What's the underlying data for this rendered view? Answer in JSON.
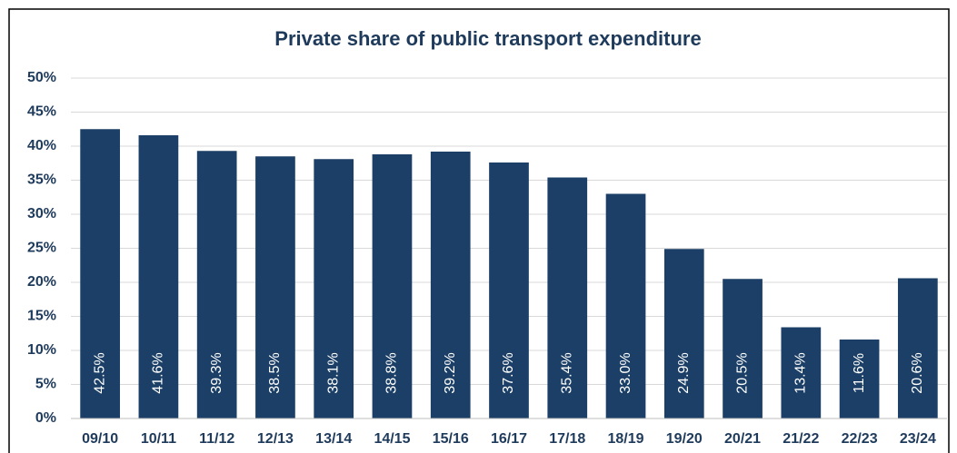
{
  "chart_data": {
    "type": "bar",
    "title": "Private share of public transport expenditure",
    "categories": [
      "09/10",
      "10/11",
      "11/12",
      "12/13",
      "13/14",
      "14/15",
      "15/16",
      "16/17",
      "17/18",
      "18/19",
      "19/20",
      "20/21",
      "21/22",
      "22/23",
      "23/24"
    ],
    "values": [
      42.5,
      41.6,
      39.3,
      38.5,
      38.1,
      38.8,
      39.2,
      37.6,
      35.4,
      33.0,
      24.9,
      20.5,
      13.4,
      11.6,
      20.6
    ],
    "value_labels": [
      "42.5%",
      "41.6%",
      "39.3%",
      "38.5%",
      "38.1%",
      "38.8%",
      "39.2%",
      "37.6%",
      "35.4%",
      "33.0%",
      "24.9%",
      "20.5%",
      "13.4%",
      "11.6%",
      "20.6%"
    ],
    "color": "#1b3f66",
    "ylim": [
      0,
      50
    ],
    "yticks": [
      {
        "value": 0,
        "label": "0%"
      },
      {
        "value": 5,
        "label": "5%"
      },
      {
        "value": 10,
        "label": "10%"
      },
      {
        "value": 15,
        "label": "15%"
      },
      {
        "value": 20,
        "label": "20%"
      },
      {
        "value": 25,
        "label": "25%"
      },
      {
        "value": 30,
        "label": "30%"
      },
      {
        "value": 35,
        "label": "35%"
      },
      {
        "value": 40,
        "label": "40%"
      },
      {
        "value": 45,
        "label": "45%"
      },
      {
        "value": 50,
        "label": "50%"
      }
    ],
    "grid": true
  }
}
